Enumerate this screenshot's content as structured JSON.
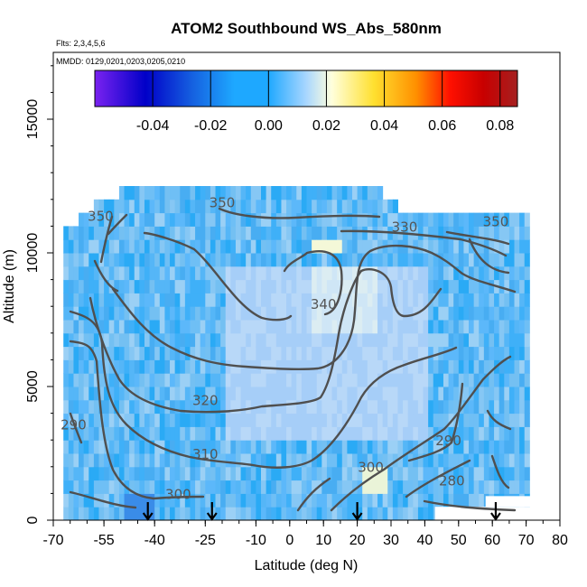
{
  "chart_data": {
    "type": "heatmap",
    "title": "ATOM2 Southbound WS_Abs_580nm",
    "flights_label": "Flts: 2,3,4,5,6",
    "dates_label": "MMDD: 0129,0201,0203,0205,0210",
    "xlabel": "Latitude (deg N)",
    "ylabel": "Altitude (m)",
    "xlim": [
      -70,
      80
    ],
    "ylim": [
      0,
      17500
    ],
    "x_ticks": [
      -70,
      -55,
      -40,
      -25,
      -10,
      0,
      10,
      20,
      30,
      40,
      50,
      60,
      70,
      80
    ],
    "y_ticks": [
      0,
      5000,
      10000,
      15000
    ],
    "colorbar": {
      "range": [
        -0.06,
        0.086
      ],
      "ticks": [
        -0.04,
        -0.02,
        0.0,
        0.02,
        0.04,
        0.06,
        0.08
      ],
      "tick_labels": [
        "-0.04",
        "-0.02",
        "0.00",
        "0.02",
        "0.04",
        "0.06",
        "0.08"
      ],
      "colors": [
        "#7a22f0",
        "#0000c8",
        "#1560e0",
        "#1ea8ff",
        "#a8d6ff",
        "#ffffdd",
        "#ffe030",
        "#ff9000",
        "#ff1000",
        "#c80000",
        "#a52020"
      ]
    },
    "field_value_typical": 0.005,
    "contour_labels": [
      {
        "text": "350",
        "lat": -56,
        "alt": 11200
      },
      {
        "text": "350",
        "lat": -20,
        "alt": 11700
      },
      {
        "text": "330",
        "lat": 34,
        "alt": 10800
      },
      {
        "text": "350",
        "lat": 61,
        "alt": 11000
      },
      {
        "text": "340",
        "lat": 10,
        "alt": 7900
      },
      {
        "text": "320",
        "lat": -25,
        "alt": 4300
      },
      {
        "text": "310",
        "lat": -25,
        "alt": 2300
      },
      {
        "text": "290",
        "lat": -64,
        "alt": 3400
      },
      {
        "text": "290",
        "lat": 47,
        "alt": 2800
      },
      {
        "text": "300",
        "lat": -33,
        "alt": 800
      },
      {
        "text": "300",
        "lat": 24,
        "alt": 1800
      },
      {
        "text": "280",
        "lat": 48,
        "alt": 1300
      }
    ],
    "flight_markers_lat": [
      -42,
      -23,
      20,
      61
    ]
  }
}
